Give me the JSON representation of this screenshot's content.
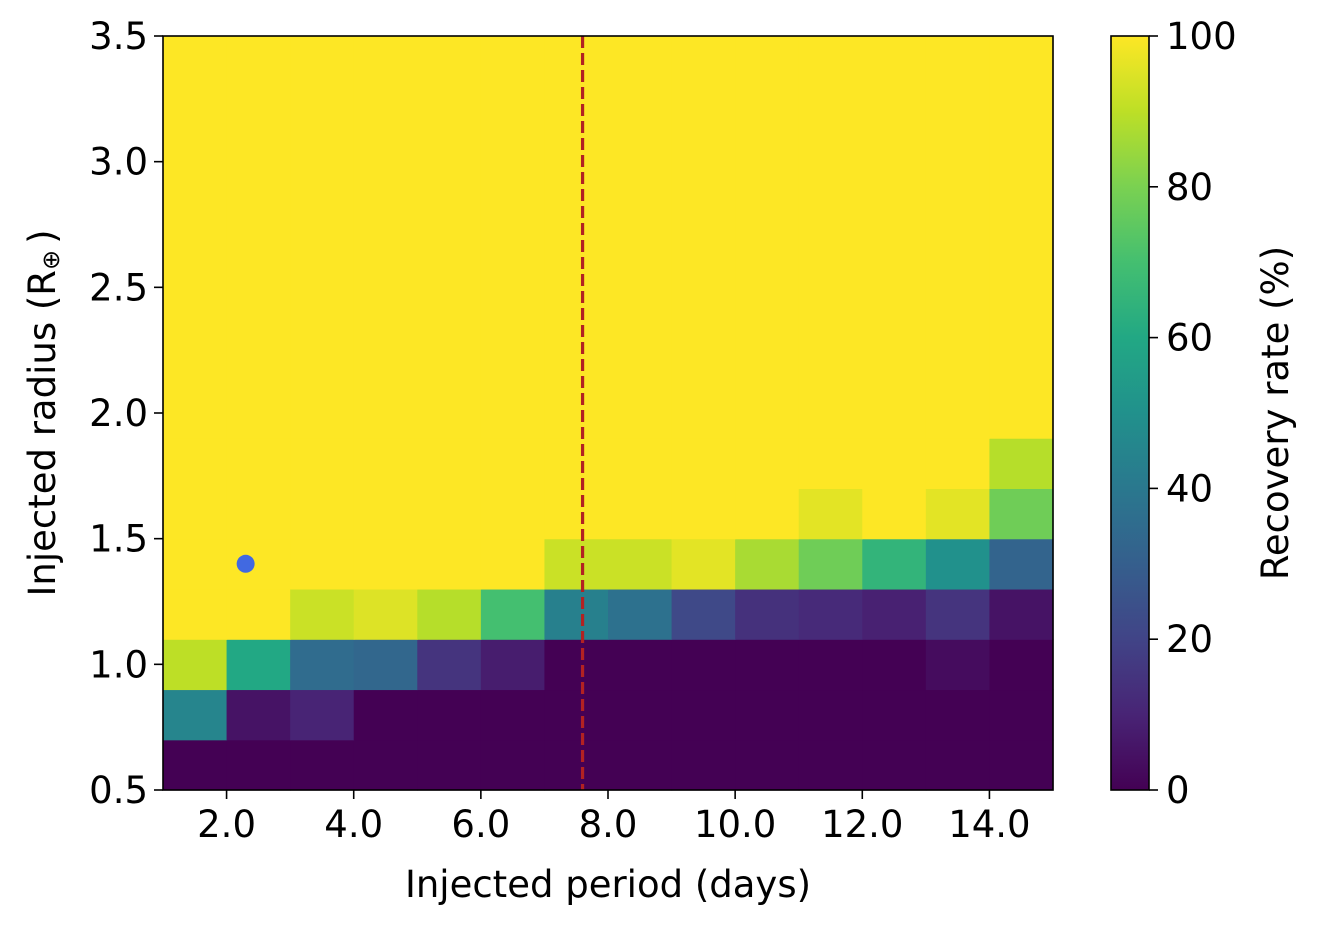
{
  "chart_data": {
    "type": "heatmap",
    "xlabel": "Injected period (days)",
    "ylabel": "Injected radius (R",
    "ylabel_symbol": "⊕",
    "ylabel_close": ")",
    "xlim": [
      1.0,
      15.0
    ],
    "ylim": [
      0.5,
      3.5
    ],
    "xticks": [
      2.0,
      4.0,
      6.0,
      8.0,
      10.0,
      12.0,
      14.0
    ],
    "xtick_labels": [
      "2.0",
      "4.0",
      "6.0",
      "8.0",
      "10.0",
      "12.0",
      "14.0"
    ],
    "yticks": [
      0.5,
      1.0,
      1.5,
      2.0,
      2.5,
      3.0,
      3.5
    ],
    "ytick_labels": [
      "0.5",
      "1.0",
      "1.5",
      "2.0",
      "2.5",
      "3.0",
      "3.5"
    ],
    "x_edges": [
      1,
      2,
      3,
      4,
      5,
      6,
      7,
      8,
      9,
      10,
      11,
      12,
      13,
      14,
      15
    ],
    "y_edges": [
      0.5,
      0.7,
      0.9,
      1.1,
      1.3,
      1.5,
      1.7,
      1.9,
      3.5
    ],
    "values": [
      [
        0,
        0,
        0,
        0,
        0,
        0,
        0,
        0,
        0,
        0,
        0,
        0,
        0,
        0
      ],
      [
        45,
        5,
        10,
        0,
        0,
        0,
        0,
        0,
        0,
        0,
        0,
        0,
        0,
        0
      ],
      [
        90,
        60,
        35,
        33,
        15,
        8,
        0,
        0,
        0,
        0,
        0,
        0,
        3,
        0
      ],
      [
        100,
        100,
        92,
        95,
        89,
        70,
        43,
        37,
        22,
        14,
        12,
        9,
        15,
        5
      ],
      [
        100,
        100,
        100,
        100,
        100,
        100,
        92,
        92,
        96,
        87,
        78,
        65,
        50,
        32
      ],
      [
        100,
        100,
        100,
        100,
        100,
        100,
        100,
        100,
        100,
        100,
        96,
        100,
        96,
        78
      ],
      [
        100,
        100,
        100,
        100,
        100,
        100,
        100,
        100,
        100,
        100,
        100,
        100,
        100,
        89
      ],
      [
        100,
        100,
        100,
        100,
        100,
        100,
        100,
        100,
        100,
        100,
        100,
        100,
        100,
        100
      ]
    ],
    "vline": {
      "x": 7.6,
      "style": "dashed",
      "color": "#b22222"
    },
    "marker": {
      "x": 2.3,
      "y": 1.4,
      "color": "#4169e1"
    },
    "colorbar": {
      "label": "Recovery rate (%)",
      "range": [
        0,
        100
      ],
      "ticks": [
        0,
        20,
        40,
        60,
        80,
        100
      ],
      "tick_labels": [
        "0",
        "20",
        "40",
        "60",
        "80",
        "100"
      ],
      "colormap": "viridis"
    }
  }
}
